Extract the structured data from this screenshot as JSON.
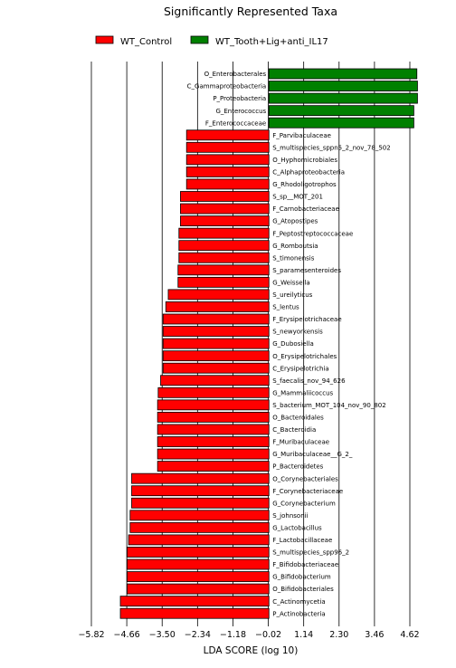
{
  "chart_data": {
    "type": "bar",
    "orientation": "horizontal",
    "title": "Significantly Represented Taxa",
    "xlabel": "LDA SCORE (log 10)",
    "xlim": [
      -5.82,
      4.62
    ],
    "xticks": [
      -5.82,
      -4.66,
      -3.5,
      -2.34,
      -1.18,
      -0.02,
      1.14,
      2.3,
      3.46,
      4.62
    ],
    "xtick_labels": [
      "−5.82",
      "−4.66",
      "−3.50",
      "−2.34",
      "−1.18",
      "−0.02",
      "1.14",
      "2.30",
      "3.46",
      "4.62"
    ],
    "grid": "vertical",
    "legend_position": "top",
    "series": [
      {
        "name": "WT_Control",
        "color": "#ff0000"
      },
      {
        "name": "WT_Tooth+Lig+anti_IL17",
        "color": "#008000"
      }
    ],
    "categories": [
      "O_Enterobacterales",
      "C_Gammaproteobacteria",
      "P_Proteobacteria",
      "G_Enterococcus",
      "F_Enterococcaceae",
      "F_Parvibaculaceae",
      "S_multispecies_sppn5_2_nov_78_502",
      "O_Hyphomicrobiales",
      "C_Alphaproteobacteria",
      "G_Rhodoligotrophos",
      "S_sp__MOT_201",
      "F_Carnobacteriaceae",
      "G_Atopostipes",
      "F_Peptostreptococcaceae",
      "G_Romboutsia",
      "S_timonensis",
      "S_paramesenteroides",
      "G_Weissella",
      "S_ureilyticus",
      "S_lentus",
      "F_Erysipelotrichaceae",
      "S_newyorkensis",
      "G_Dubosiella",
      "O_Erysipelotrichales",
      "C_Erysipelotrichia",
      "S_faecalis_nov_94_626",
      "G_Mammaliicoccus",
      "S_bacterium_MOT_104_nov_90_802",
      "O_Bacteroidales",
      "C_Bacteroidia",
      "F_Muribaculaceae",
      "G_Muribaculaceae__G_2_",
      "P_Bacteroidetes",
      "O_Corynebacteriales",
      "F_Corynebacteriaceae",
      "G_Corynebacterium",
      "S_johnsonii",
      "G_Lactobacillus",
      "F_Lactobacillaceae",
      "S_multispecies_spp96_2",
      "F_Bifidobacteriaceae",
      "G_Bifidobacterium",
      "O_Bifidobacteriales",
      "C_Actinomycetia",
      "P_Actinobacteria"
    ],
    "values": [
      4.85,
      4.87,
      4.87,
      4.75,
      4.75,
      -2.7,
      -2.7,
      -2.7,
      -2.7,
      -2.7,
      -2.9,
      -2.9,
      -2.9,
      -2.95,
      -2.95,
      -2.95,
      -2.98,
      -2.98,
      -3.3,
      -3.38,
      -3.47,
      -3.47,
      -3.47,
      -3.47,
      -3.47,
      -3.55,
      -3.63,
      -3.65,
      -3.65,
      -3.65,
      -3.65,
      -3.65,
      -3.65,
      -4.5,
      -4.5,
      -4.5,
      -4.55,
      -4.55,
      -4.6,
      -4.65,
      -4.65,
      -4.65,
      -4.65,
      -4.87,
      -4.87
    ],
    "value_group": [
      "WT_Tooth+Lig+anti_IL17",
      "WT_Tooth+Lig+anti_IL17",
      "WT_Tooth+Lig+anti_IL17",
      "WT_Tooth+Lig+anti_IL17",
      "WT_Tooth+Lig+anti_IL17",
      "WT_Control",
      "WT_Control",
      "WT_Control",
      "WT_Control",
      "WT_Control",
      "WT_Control",
      "WT_Control",
      "WT_Control",
      "WT_Control",
      "WT_Control",
      "WT_Control",
      "WT_Control",
      "WT_Control",
      "WT_Control",
      "WT_Control",
      "WT_Control",
      "WT_Control",
      "WT_Control",
      "WT_Control",
      "WT_Control",
      "WT_Control",
      "WT_Control",
      "WT_Control",
      "WT_Control",
      "WT_Control",
      "WT_Control",
      "WT_Control",
      "WT_Control",
      "WT_Control",
      "WT_Control",
      "WT_Control",
      "WT_Control",
      "WT_Control",
      "WT_Control",
      "WT_Control",
      "WT_Control",
      "WT_Control",
      "WT_Control",
      "WT_Control",
      "WT_Control"
    ]
  }
}
